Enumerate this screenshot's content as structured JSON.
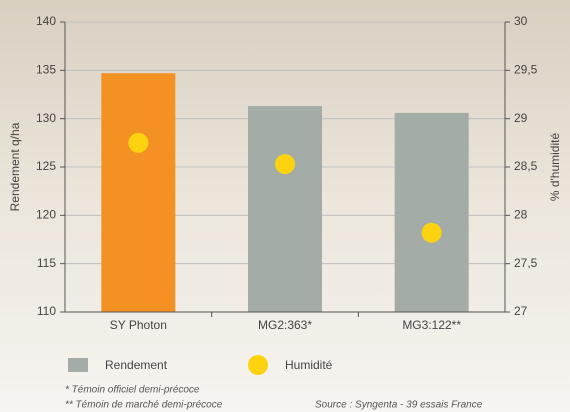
{
  "chart_data": {
    "type": "bar",
    "categories": [
      "SY Photon",
      "MG2:363*",
      "MG3:122**"
    ],
    "series": [
      {
        "name": "Rendement",
        "type": "bar",
        "color": "#a3aca6",
        "colors": [
          "#f39122",
          "#a3aca6",
          "#a3aca6"
        ],
        "values": [
          134.7,
          131.3,
          130.6
        ]
      },
      {
        "name": "Humidité",
        "type": "dot",
        "axis": "y2",
        "color": "#fdd20f",
        "values": [
          28.75,
          28.53,
          27.82
        ]
      }
    ],
    "ylabel": "Rendement q/ha",
    "y2label": "% d'humidité",
    "ylim": [
      110,
      140
    ],
    "yticks": [
      110,
      115,
      120,
      125,
      130,
      135,
      140
    ],
    "y2lim": [
      27,
      30
    ],
    "y2ticks": [
      27,
      {
        "value": 27.5,
        "label": "27,5"
      },
      28,
      {
        "value": 28.5,
        "label": "28,5"
      },
      29,
      {
        "value": 29.5,
        "label": "29,5"
      },
      30
    ],
    "grid": true,
    "notes": [
      "* Témoin officiel demi-précoce",
      "** Témoin de marché demi-précoce"
    ],
    "source": "Source : Syngenta - 39 essais France"
  }
}
